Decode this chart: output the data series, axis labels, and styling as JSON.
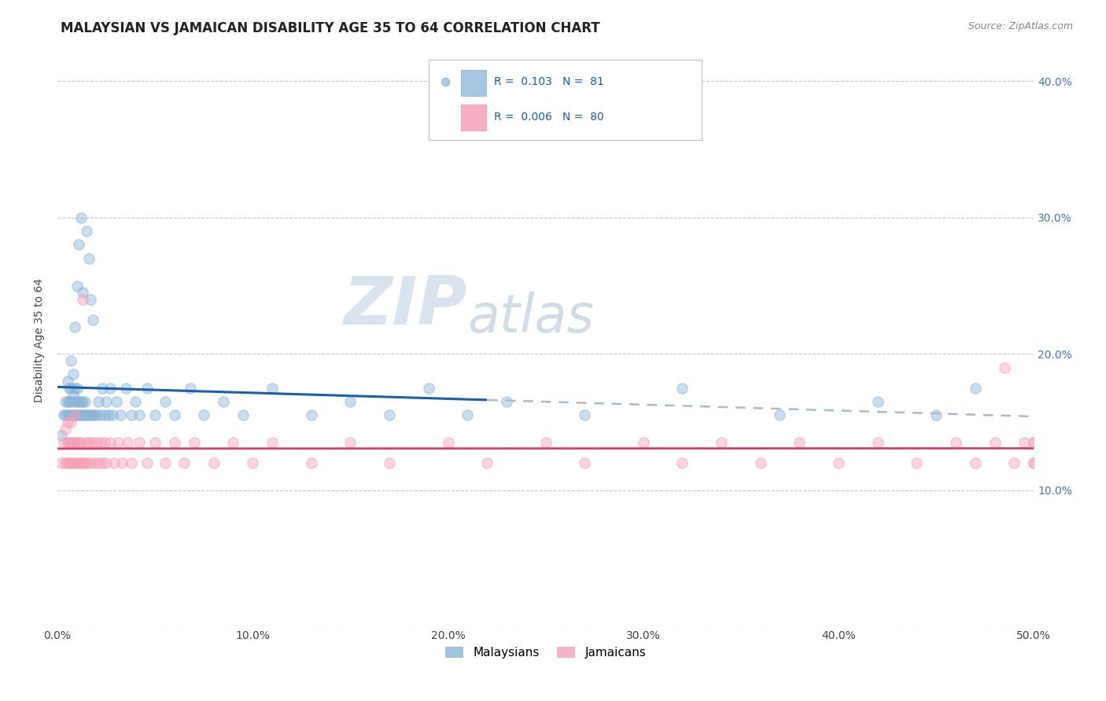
{
  "title": "MALAYSIAN VS JAMAICAN DISABILITY AGE 35 TO 64 CORRELATION CHART",
  "source": "Source: ZipAtlas.com",
  "ylabel": "Disability Age 35 to 64",
  "xlim": [
    0.0,
    0.5
  ],
  "ylim": [
    0.02,
    0.42
  ],
  "xtick_vals": [
    0.0,
    0.1,
    0.2,
    0.3,
    0.4,
    0.5
  ],
  "xticklabels": [
    "0.0%",
    "10.0%",
    "20.0%",
    "30.0%",
    "40.0%",
    "50.0%"
  ],
  "ytick_vals": [
    0.0,
    0.1,
    0.2,
    0.3,
    0.4
  ],
  "yticklabels_right": [
    "",
    "10.0%",
    "20.0%",
    "30.0%",
    "40.0%"
  ],
  "R_malaysian": 0.103,
  "N_malaysian": 81,
  "R_jamaican": 0.006,
  "N_jamaican": 80,
  "color_malaysian": "#8ab4d9",
  "color_jamaican": "#f4a0b8",
  "trendline_malaysian_color": "#1a5fa8",
  "trendline_jamaican_color": "#d94070",
  "watermark_zip": "ZIP",
  "watermark_atlas": "atlas",
  "background_color": "#ffffff",
  "grid_color": "#c8c8c8",
  "title_fontsize": 12,
  "source_fontsize": 9,
  "axis_label_fontsize": 10,
  "tick_fontsize": 10,
  "marker_size": 90,
  "marker_alpha": 0.45,
  "legend_label_malaysian": "Malaysians",
  "legend_label_jamaican": "Jamaicans",
  "malaysian_x": [
    0.002,
    0.003,
    0.004,
    0.004,
    0.005,
    0.005,
    0.005,
    0.006,
    0.006,
    0.006,
    0.007,
    0.007,
    0.007,
    0.007,
    0.008,
    0.008,
    0.008,
    0.009,
    0.009,
    0.009,
    0.009,
    0.01,
    0.01,
    0.01,
    0.01,
    0.011,
    0.011,
    0.011,
    0.012,
    0.012,
    0.012,
    0.013,
    0.013,
    0.013,
    0.014,
    0.014,
    0.015,
    0.015,
    0.016,
    0.016,
    0.017,
    0.017,
    0.018,
    0.018,
    0.019,
    0.02,
    0.021,
    0.022,
    0.023,
    0.024,
    0.025,
    0.026,
    0.027,
    0.028,
    0.03,
    0.032,
    0.035,
    0.038,
    0.04,
    0.042,
    0.046,
    0.05,
    0.055,
    0.06,
    0.068,
    0.075,
    0.085,
    0.095,
    0.11,
    0.13,
    0.15,
    0.17,
    0.19,
    0.21,
    0.23,
    0.27,
    0.32,
    0.37,
    0.42,
    0.45,
    0.47
  ],
  "malaysian_y": [
    0.14,
    0.155,
    0.155,
    0.165,
    0.155,
    0.165,
    0.18,
    0.155,
    0.165,
    0.175,
    0.155,
    0.165,
    0.175,
    0.195,
    0.155,
    0.17,
    0.185,
    0.155,
    0.165,
    0.175,
    0.22,
    0.155,
    0.165,
    0.175,
    0.25,
    0.155,
    0.165,
    0.28,
    0.155,
    0.165,
    0.3,
    0.155,
    0.165,
    0.245,
    0.155,
    0.165,
    0.155,
    0.29,
    0.155,
    0.27,
    0.155,
    0.24,
    0.155,
    0.225,
    0.155,
    0.155,
    0.165,
    0.155,
    0.175,
    0.155,
    0.165,
    0.155,
    0.175,
    0.155,
    0.165,
    0.155,
    0.175,
    0.155,
    0.165,
    0.155,
    0.175,
    0.155,
    0.165,
    0.155,
    0.175,
    0.155,
    0.165,
    0.155,
    0.175,
    0.155,
    0.165,
    0.155,
    0.175,
    0.155,
    0.165,
    0.155,
    0.175,
    0.155,
    0.165,
    0.155,
    0.175
  ],
  "jamaican_x": [
    0.002,
    0.003,
    0.004,
    0.004,
    0.005,
    0.005,
    0.005,
    0.006,
    0.006,
    0.007,
    0.007,
    0.007,
    0.008,
    0.008,
    0.009,
    0.009,
    0.009,
    0.01,
    0.01,
    0.011,
    0.011,
    0.012,
    0.012,
    0.013,
    0.013,
    0.014,
    0.015,
    0.015,
    0.016,
    0.017,
    0.018,
    0.019,
    0.02,
    0.021,
    0.022,
    0.023,
    0.024,
    0.025,
    0.027,
    0.029,
    0.031,
    0.033,
    0.036,
    0.038,
    0.042,
    0.046,
    0.05,
    0.055,
    0.06,
    0.065,
    0.07,
    0.08,
    0.09,
    0.1,
    0.11,
    0.13,
    0.15,
    0.17,
    0.2,
    0.22,
    0.25,
    0.27,
    0.3,
    0.32,
    0.34,
    0.36,
    0.38,
    0.4,
    0.42,
    0.44,
    0.46,
    0.47,
    0.48,
    0.485,
    0.49,
    0.495,
    0.5,
    0.5,
    0.5,
    0.5
  ],
  "jamaican_y": [
    0.12,
    0.135,
    0.12,
    0.145,
    0.12,
    0.135,
    0.15,
    0.12,
    0.135,
    0.12,
    0.135,
    0.15,
    0.12,
    0.135,
    0.12,
    0.135,
    0.155,
    0.12,
    0.135,
    0.12,
    0.135,
    0.12,
    0.135,
    0.12,
    0.24,
    0.12,
    0.135,
    0.12,
    0.135,
    0.12,
    0.135,
    0.12,
    0.135,
    0.12,
    0.135,
    0.12,
    0.135,
    0.12,
    0.135,
    0.12,
    0.135,
    0.12,
    0.135,
    0.12,
    0.135,
    0.12,
    0.135,
    0.12,
    0.135,
    0.12,
    0.135,
    0.12,
    0.135,
    0.12,
    0.135,
    0.12,
    0.135,
    0.12,
    0.135,
    0.12,
    0.135,
    0.12,
    0.135,
    0.12,
    0.135,
    0.12,
    0.135,
    0.12,
    0.135,
    0.12,
    0.135,
    0.12,
    0.135,
    0.19,
    0.12,
    0.135,
    0.12,
    0.135,
    0.12,
    0.135
  ]
}
